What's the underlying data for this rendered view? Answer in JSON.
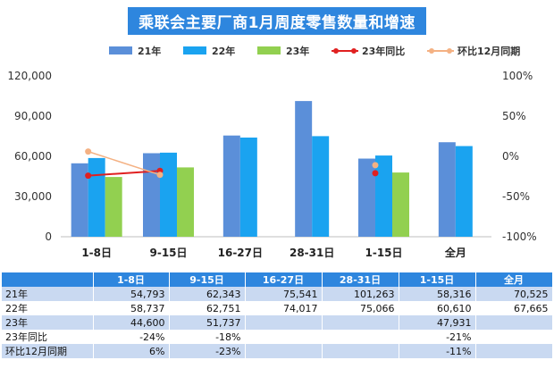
{
  "title": "乘联会主要厂商1月周度零售数量和增速",
  "legend": [
    {
      "key": "y21",
      "label": "21年",
      "type": "bar",
      "color": "#5b8fd9"
    },
    {
      "key": "y22",
      "label": "22年",
      "type": "bar",
      "color": "#1aa3f0"
    },
    {
      "key": "y23",
      "label": "23年",
      "type": "bar",
      "color": "#92d050"
    },
    {
      "key": "yoy",
      "label": "23年同比",
      "type": "line",
      "color": "#e02020"
    },
    {
      "key": "mom",
      "label": "环比12月同期",
      "type": "line",
      "color": "#f4b183"
    }
  ],
  "chart_data": {
    "type": "bar",
    "categories": [
      "1-8日",
      "9-15日",
      "16-27日",
      "28-31日",
      "1-15日",
      "全月"
    ],
    "series": [
      {
        "name": "21年",
        "type": "bar",
        "axis": "left",
        "values": [
          54793,
          62343,
          75541,
          101263,
          58316,
          70525
        ]
      },
      {
        "name": "22年",
        "type": "bar",
        "axis": "left",
        "values": [
          58737,
          62751,
          74017,
          75066,
          60610,
          67665
        ]
      },
      {
        "name": "23年",
        "type": "bar",
        "axis": "left",
        "values": [
          44600,
          51737,
          null,
          null,
          47931,
          null
        ]
      },
      {
        "name": "23年同比",
        "type": "line",
        "axis": "right",
        "values": [
          -24,
          -18,
          null,
          null,
          -21,
          null
        ]
      },
      {
        "name": "环比12月同期",
        "type": "line",
        "axis": "right",
        "values": [
          6,
          -23,
          null,
          null,
          -11,
          null
        ]
      }
    ],
    "yleft": {
      "min": 0,
      "max": 120000,
      "ticks": [
        0,
        30000,
        60000,
        90000,
        120000
      ],
      "tick_labels": [
        "0",
        "30,000",
        "60,000",
        "90,000",
        "120,000"
      ]
    },
    "yright": {
      "min": -100,
      "max": 100,
      "ticks": [
        -100,
        -50,
        0,
        50,
        100
      ],
      "tick_labels": [
        "-100%",
        "-50%",
        "0%",
        "50%",
        "100%"
      ]
    },
    "grid": false,
    "legend_position": "top"
  },
  "table": {
    "columns": [
      "",
      "1-8日",
      "9-15日",
      "16-27日",
      "28-31日",
      "1-15日",
      "全月"
    ],
    "rows": [
      [
        "21年",
        "54,793",
        "62,343",
        "75,541",
        "101,263",
        "58,316",
        "70,525"
      ],
      [
        "22年",
        "58,737",
        "62,751",
        "74,017",
        "75,066",
        "60,610",
        "67,665"
      ],
      [
        "23年",
        "44,600",
        "51,737",
        "",
        "",
        "47,931",
        ""
      ],
      [
        "23年同比",
        "-24%",
        "-18%",
        "",
        "",
        "-21%",
        ""
      ],
      [
        "环比12月同期",
        "6%",
        "-23%",
        "",
        "",
        "-11%",
        ""
      ]
    ]
  }
}
